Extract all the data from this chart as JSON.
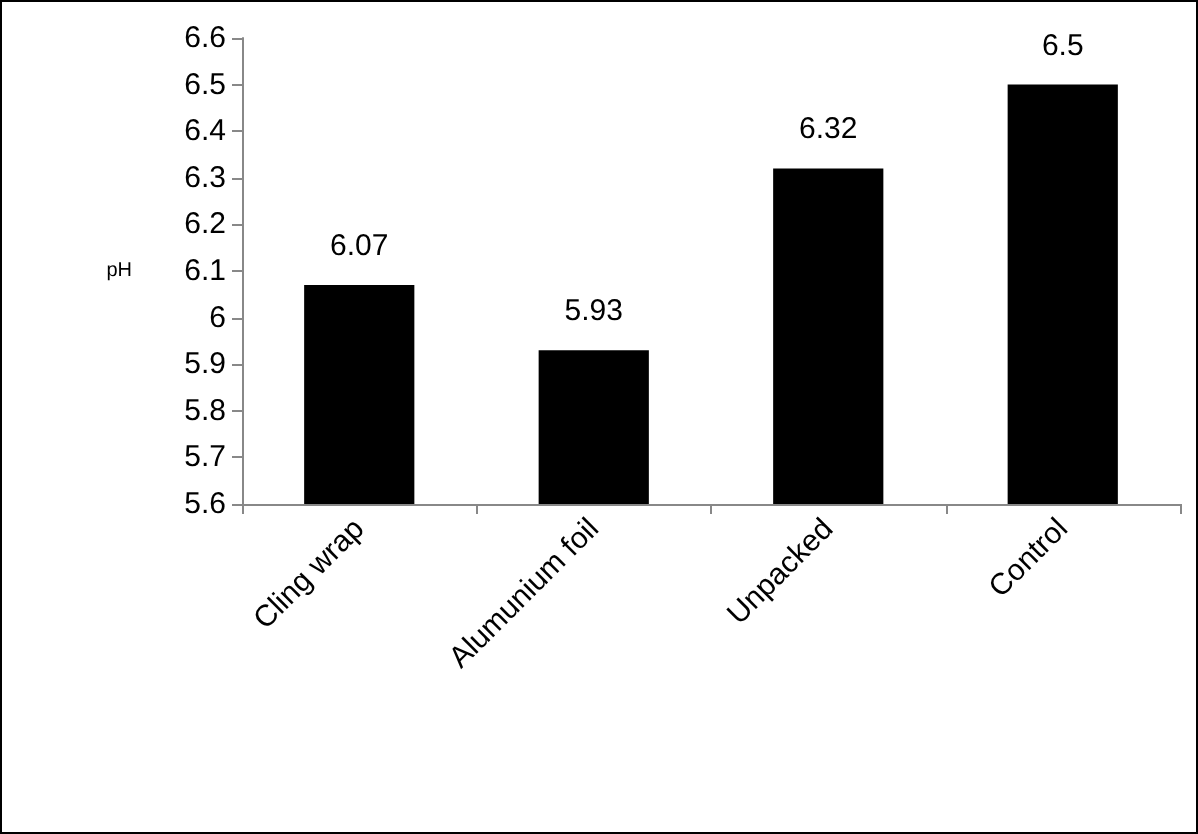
{
  "chart_data": {
    "type": "bar",
    "ylabel": "pH",
    "categories": [
      "Cling wrap",
      "Alumunium foil",
      "Unpacked",
      "Control"
    ],
    "values": [
      6.07,
      5.93,
      6.32,
      6.5
    ],
    "color": "#000000",
    "data_labels": true,
    "grid": false,
    "ylim": [
      5.6,
      6.6
    ],
    "yticks": [
      5.6,
      5.7,
      5.8,
      5.9,
      6,
      6.1,
      6.2,
      6.3,
      6.4,
      6.5,
      6.6
    ]
  }
}
